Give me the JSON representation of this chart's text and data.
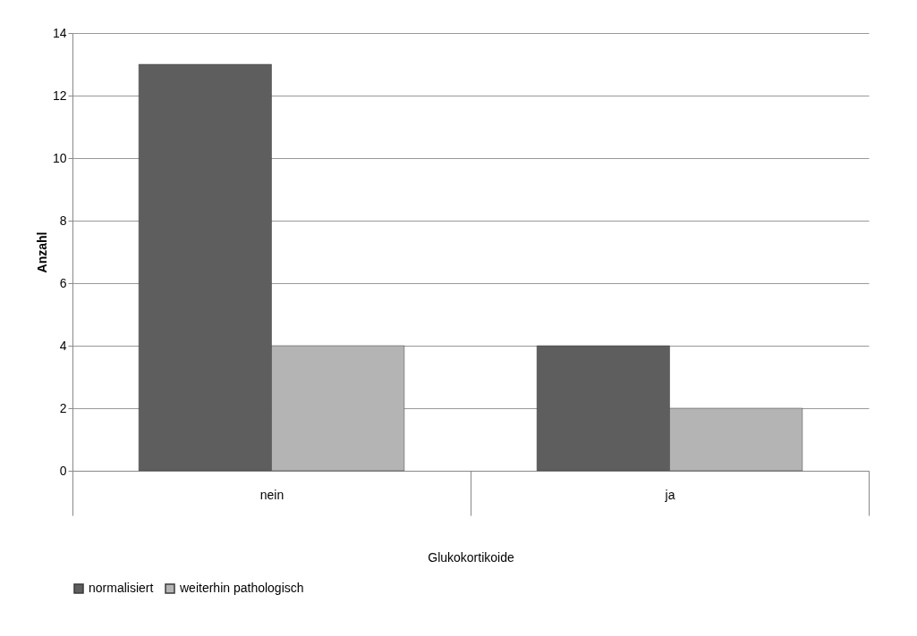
{
  "chart_data": {
    "type": "bar",
    "xlabel": "Glukokortikoide",
    "ylabel": "Anzahl",
    "categories": [
      "nein",
      "ja"
    ],
    "series": [
      {
        "name": "normalisiert",
        "color": "#5e5e5e",
        "values": [
          13,
          4
        ]
      },
      {
        "name": "weiterhin pathologisch",
        "color": "#b4b4b4",
        "values": [
          4,
          2
        ]
      }
    ],
    "ylim": [
      0,
      14
    ],
    "yticks": [
      0,
      2,
      4,
      6,
      8,
      10,
      12,
      14
    ],
    "grid": "y",
    "legend": "bottom"
  }
}
